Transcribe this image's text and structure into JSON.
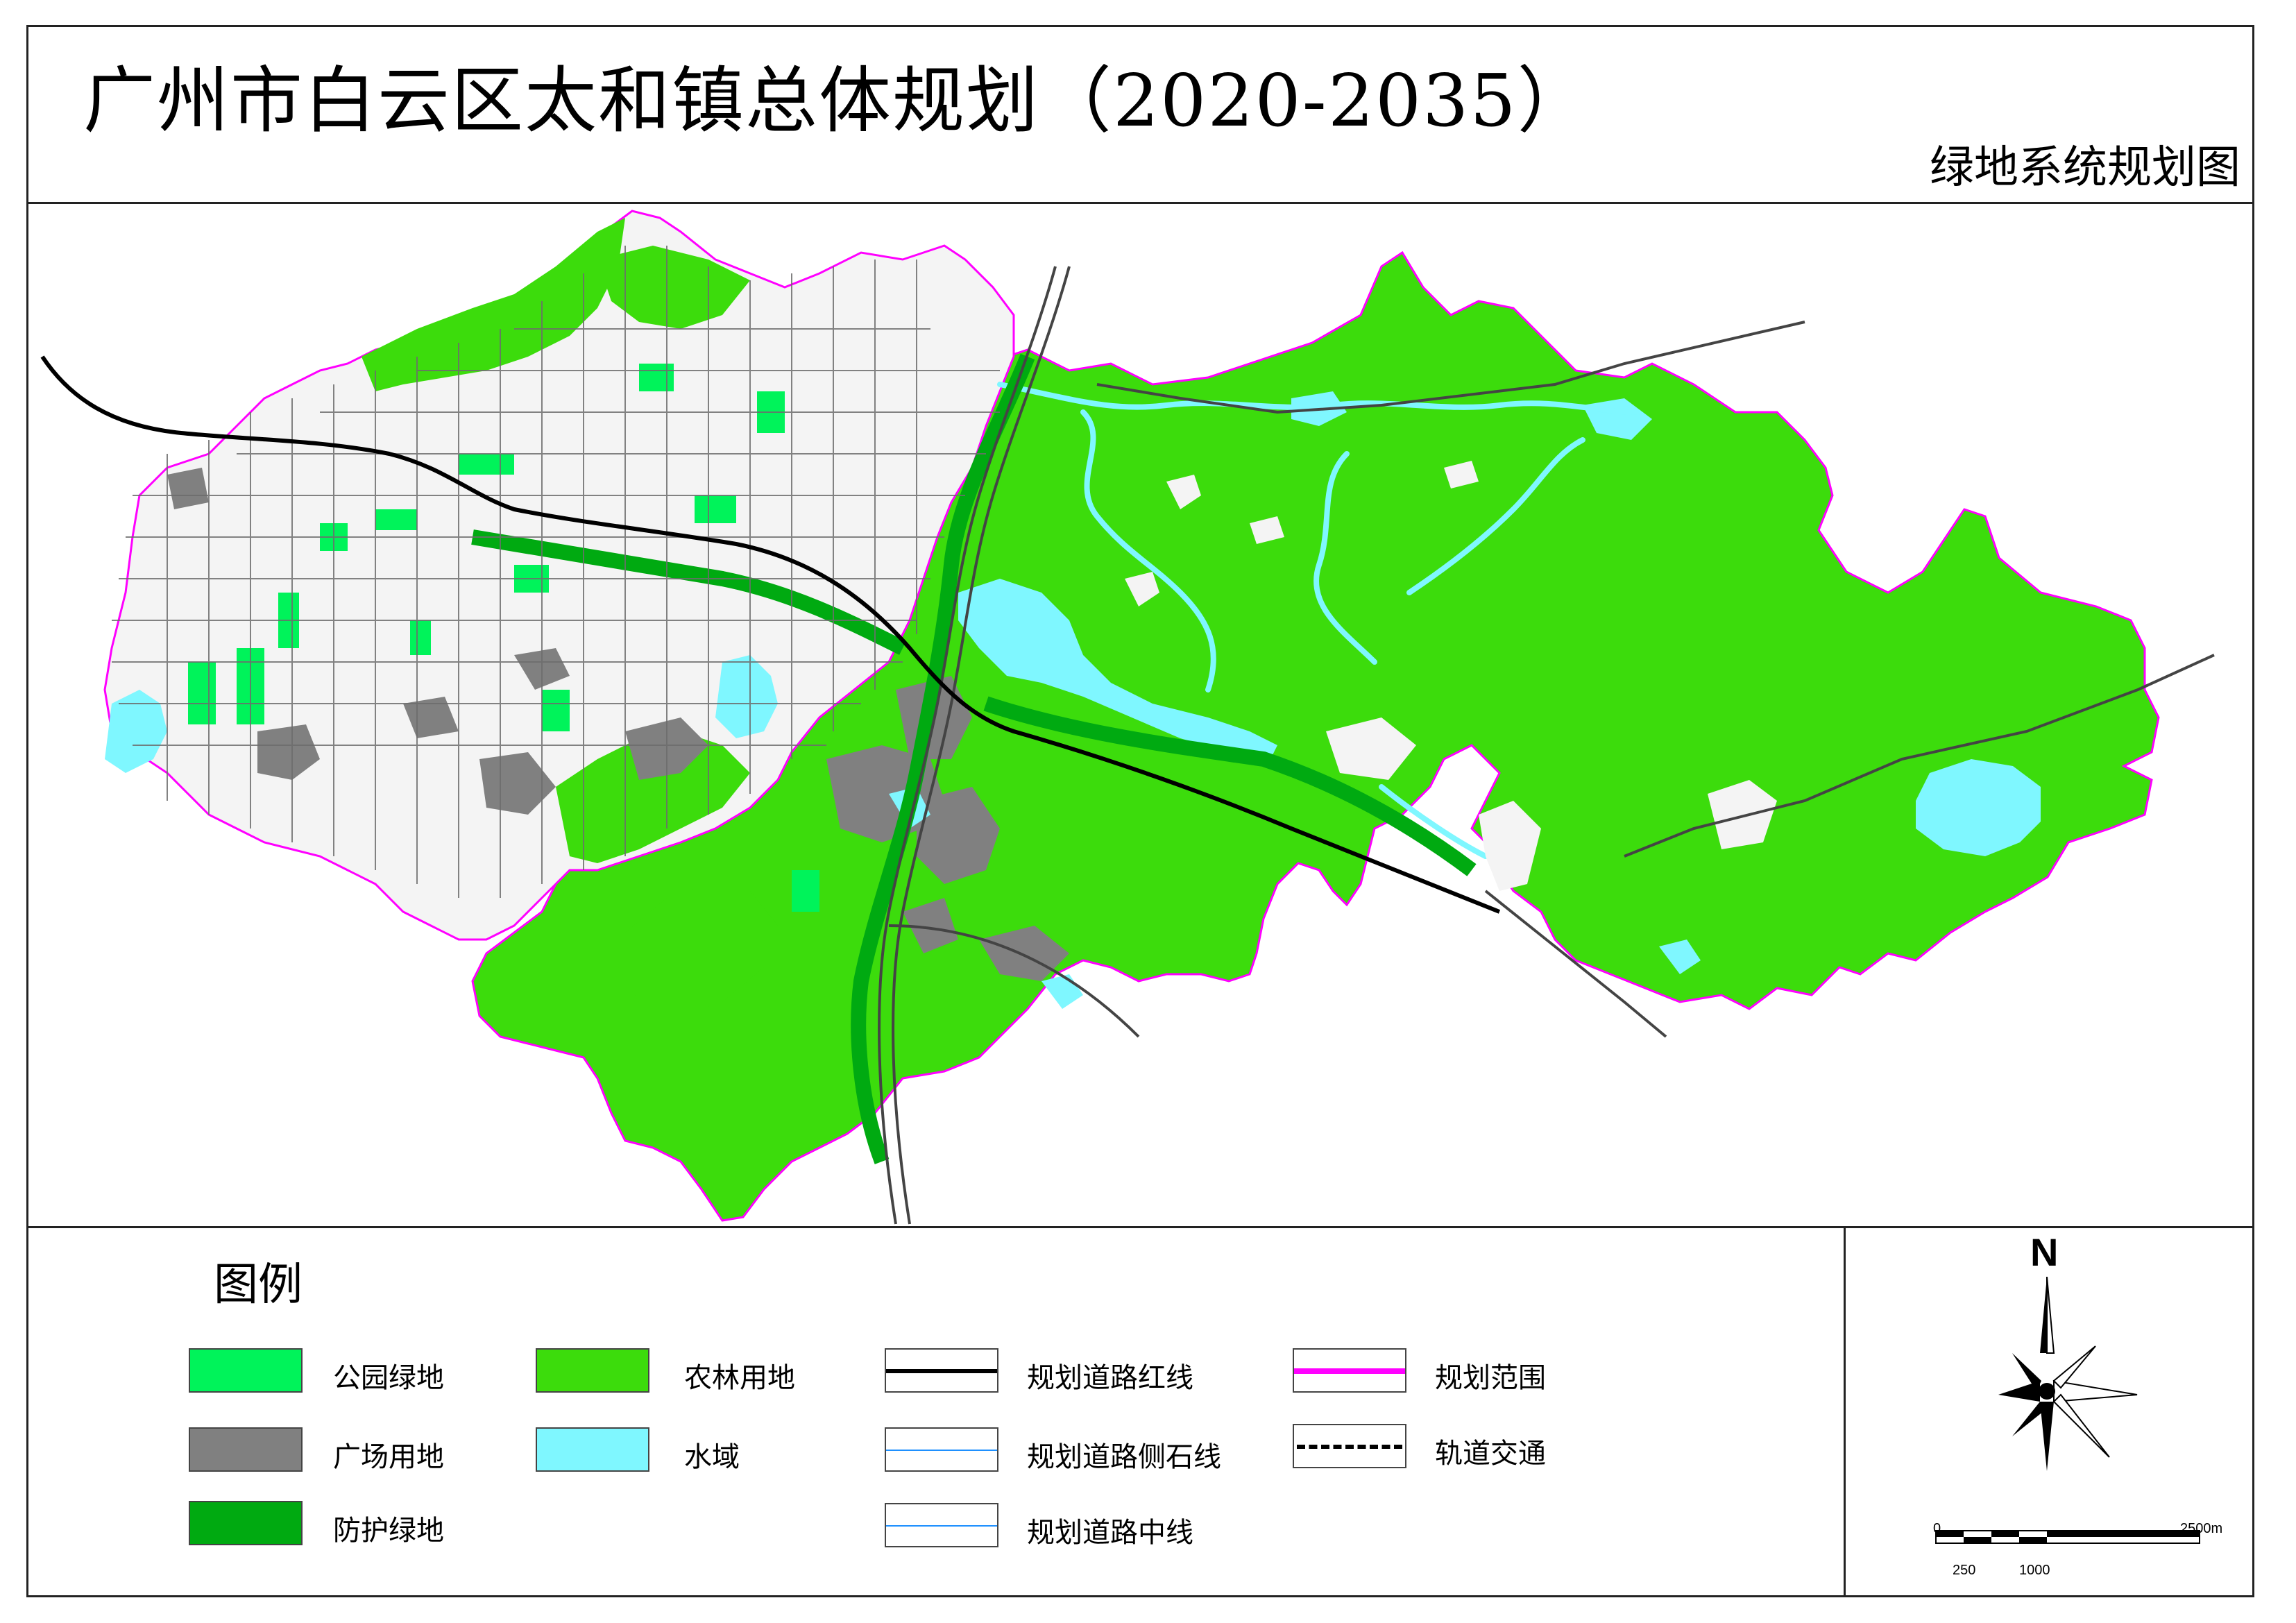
{
  "header": {
    "title": "广州市白云区太和镇总体规划（2020-2035）",
    "subtitle": "绿地系统规划图"
  },
  "legend": {
    "title": "图例",
    "items": [
      {
        "label": "公园绿地",
        "color": "#00f35a",
        "kind": "fill"
      },
      {
        "label": "广场用地",
        "color": "#808080",
        "kind": "fill"
      },
      {
        "label": "防护绿地",
        "color": "#00aa11",
        "kind": "fill"
      },
      {
        "label": "农林用地",
        "color": "#3cdc0c",
        "kind": "fill"
      },
      {
        "label": "水域",
        "color": "#7ff7ff",
        "kind": "fill"
      },
      {
        "label": "规划道路红线",
        "color": "#000000",
        "kind": "solid-line"
      },
      {
        "label": "规划道路侧石线",
        "color": "#1e90ff",
        "kind": "thin-line"
      },
      {
        "label": "规划道路中线",
        "color": "#1e90ff",
        "kind": "thin-line"
      },
      {
        "label": "规划范围",
        "color": "#ff00ff",
        "kind": "boundary-line"
      },
      {
        "label": "轨道交通",
        "color": "#000000",
        "kind": "dashed-line"
      }
    ]
  },
  "north_arrow": {
    "letter": "N",
    "icon": "compass-rose-icon"
  },
  "scale_bar": {
    "top_labels": [
      "0",
      "2500m"
    ],
    "bottom_labels": [
      "250",
      "1000"
    ]
  },
  "map": {
    "colors": {
      "farmland_green": "#3cdc0c",
      "park_green": "#00f35a",
      "protective_green": "#00aa11",
      "square_gray": "#808080",
      "water_cyan": "#7ff7ff",
      "boundary_magenta": "#ff00ff",
      "urban_white": "#f4f4f4",
      "road_line": "#555555",
      "rail_line": "#000000"
    }
  }
}
